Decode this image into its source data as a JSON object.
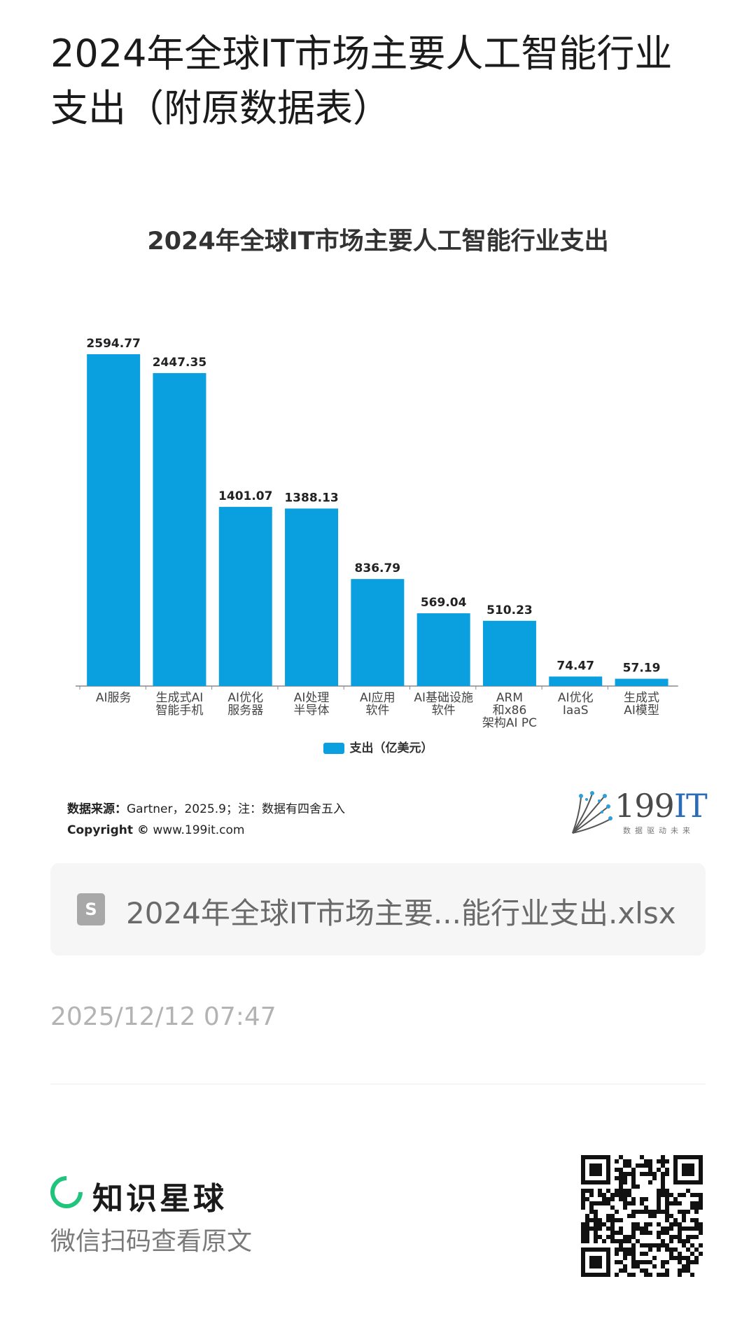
{
  "post": {
    "title": "2024年全球IT市场主要人工智能行业支出（附原数据表）"
  },
  "chart_data": {
    "type": "bar",
    "title": "2024年全球IT市场主要人工智能行业支出",
    "categories": [
      [
        "AI服务"
      ],
      [
        "生成式AI",
        "智能手机"
      ],
      [
        "AI优化",
        "服务器"
      ],
      [
        "AI处理",
        "半导体"
      ],
      [
        "AI应用",
        "软件"
      ],
      [
        "AI基础设施",
        "软件"
      ],
      [
        "ARM",
        "和x86",
        "架构AI PC"
      ],
      [
        "AI优化",
        "IaaS"
      ],
      [
        "生成式",
        "AI模型"
      ]
    ],
    "series": [
      {
        "name": "支出（亿美元）",
        "values": [
          2594.77,
          2447.35,
          1401.07,
          1388.13,
          836.79,
          569.04,
          510.23,
          74.47,
          57.19
        ],
        "labels": [
          "2594.77",
          "2447.35",
          "1401.07",
          "1388.13",
          "836.79",
          "569.04",
          "510.23",
          "74.47",
          "57.19"
        ]
      }
    ],
    "ylim": [
      0,
      2594.77
    ],
    "grid": false,
    "legend_position": "bottom",
    "bar_color": "#0aa0e0"
  },
  "source": {
    "label": "数据来源：",
    "text": "Gartner，2025.9；注：数据有四舍五入",
    "copyright_label": "Copyright ©",
    "site": "www.199it.com"
  },
  "logo": {
    "text_num": "199",
    "text_it": "IT",
    "slogan": "数据驱动未来"
  },
  "file": {
    "icon": "spreadsheet-file-icon",
    "icon_letter": "S",
    "name": "2024年全球IT市场主要...能行业支出.xlsx"
  },
  "timestamp": "2025/12/12 07:47",
  "footer": {
    "brand_icon": "zsxq-ring-icon",
    "brand_name": "知识星球",
    "scan_hint": "微信扫码查看原文",
    "accent_color": "#21c47c"
  }
}
